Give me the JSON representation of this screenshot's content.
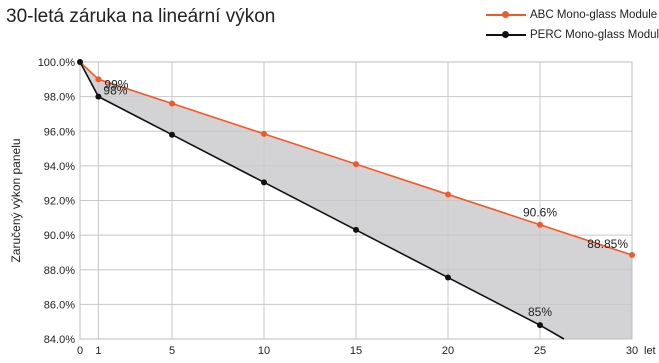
{
  "title": "30-letá záruka na lineární výkon",
  "colors": {
    "abc": "#f05a28",
    "perc": "#111111",
    "band": "#d3d3d5",
    "grid": "#c8c8c8"
  },
  "legend": [
    {
      "label": "ABC Mono-glass Module",
      "color": "#f05a28"
    },
    {
      "label": "PERC Mono-glass Module",
      "color": "#111111"
    }
  ],
  "chart_data": {
    "type": "line",
    "title": "30-letá záruka na lineární výkon",
    "xlabel": "let",
    "ylabel": "Zaručený výkon panelu",
    "xlim": [
      0,
      30
    ],
    "ylim": [
      84.0,
      100.0
    ],
    "x_ticks": [
      "0",
      "1",
      "5",
      "10",
      "15",
      "20",
      "25",
      "30"
    ],
    "y_ticks": [
      "84.0%",
      "86.0%",
      "88.0%",
      "90.0%",
      "92.0%",
      "94.0%",
      "96.0%",
      "98.0%",
      "100.0%"
    ],
    "grid": true,
    "legend_position": "top-right",
    "series": [
      {
        "name": "ABC Mono-glass Module",
        "color": "#f05a28",
        "x": [
          0,
          1,
          5,
          10,
          15,
          20,
          25,
          30
        ],
        "y": [
          100.0,
          99.0,
          97.6,
          95.85,
          94.1,
          92.35,
          90.6,
          88.85
        ]
      },
      {
        "name": "PERC Mono-glass Module",
        "color": "#111111",
        "x": [
          0,
          1,
          5,
          10,
          15,
          20,
          25,
          26.3
        ],
        "y": [
          100.0,
          98.0,
          95.8,
          93.05,
          90.3,
          87.55,
          84.8,
          84.0
        ]
      }
    ],
    "annotations": [
      {
        "text": "99%",
        "x": 1,
        "y": 99.0
      },
      {
        "text": "98%",
        "x": 1,
        "y": 98.0
      },
      {
        "text": "90.6%",
        "x": 25,
        "y": 90.6
      },
      {
        "text": "88.85%",
        "x": 30,
        "y": 88.85
      },
      {
        "text": "85%",
        "x": 25,
        "y": 84.8
      }
    ]
  }
}
